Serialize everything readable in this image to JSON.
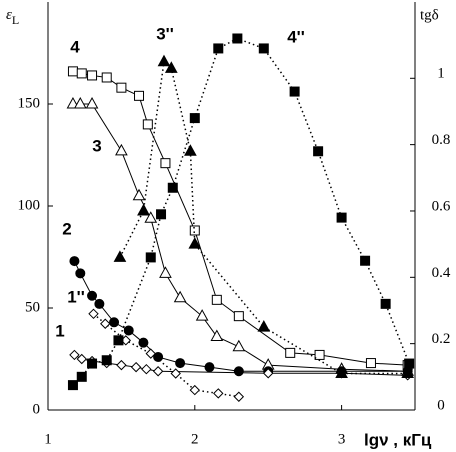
{
  "chart_data": {
    "type": "line",
    "y_label": {
      "symbol": "ε",
      "sub": "L"
    },
    "y2_label": "tgδ",
    "x_label": "lgν , кГц",
    "xlim": [
      1,
      3.5
    ],
    "xticks": [
      1,
      2,
      3
    ],
    "ylim": [
      0,
      200
    ],
    "yticks": [
      0,
      50,
      100,
      150
    ],
    "y2lim": [
      0,
      1.23
    ],
    "y2ticks": [
      0,
      0.2,
      0.4,
      0.6,
      0.8,
      1
    ],
    "series": [
      {
        "name": "4",
        "color": "#000000",
        "marker": "square-open",
        "line": "solid",
        "x": [
          1.17,
          1.23,
          1.3,
          1.4,
          1.5,
          1.62,
          1.68,
          1.8,
          2.0,
          2.15,
          2.3,
          2.65,
          2.85,
          3.2,
          3.45
        ],
        "values": [
          166,
          165,
          164,
          163,
          158,
          154,
          140,
          121,
          88,
          54,
          46,
          28,
          27,
          23,
          22
        ]
      },
      {
        "name": "3",
        "color": "#000000",
        "marker": "triangle-open",
        "line": "solid",
        "x": [
          1.17,
          1.22,
          1.3,
          1.5,
          1.62,
          1.7,
          1.8,
          1.9,
          2.05,
          2.15,
          2.3,
          2.5,
          3.0,
          3.45
        ],
        "values": [
          150,
          150,
          150,
          127,
          105,
          94,
          67,
          55,
          46,
          36,
          31,
          22,
          20,
          19
        ]
      },
      {
        "name": "2",
        "color": "#000000",
        "marker": "circle-filled",
        "line": "solid",
        "x": [
          1.18,
          1.22,
          1.3,
          1.35,
          1.45,
          1.55,
          1.65,
          1.75,
          1.9,
          2.1,
          2.3,
          2.5,
          3.0,
          3.45
        ],
        "values": [
          73,
          67,
          56,
          52,
          43,
          39,
          33,
          26,
          23,
          21,
          19,
          19,
          19,
          19
        ]
      },
      {
        "name": "1",
        "color": "#000000",
        "marker": "diamond-open",
        "line": "solid",
        "x": [
          1.18,
          1.23,
          1.3,
          1.4,
          1.5,
          1.6,
          1.67,
          1.75,
          2.5,
          3.0,
          3.45
        ],
        "values": [
          27,
          25,
          24,
          23,
          22,
          21,
          20,
          19,
          18,
          18,
          17
        ]
      },
      {
        "name": "1''",
        "color": "#000000",
        "marker": "diamond-open",
        "line": "dotted",
        "axis": "y2",
        "x": [
          1.31,
          1.39,
          1.53,
          1.7,
          1.87,
          2.0,
          2.16,
          2.3
        ],
        "values": [
          0.29,
          0.26,
          0.21,
          0.17,
          0.11,
          0.06,
          0.05,
          0.04
        ]
      },
      {
        "name": "3''",
        "color": "#000000",
        "marker": "triangle-filled",
        "line": "dotted",
        "axis": "y2",
        "x": [
          1.49,
          1.65,
          1.79,
          1.84,
          1.97,
          2.0,
          2.47,
          3.0,
          3.45
        ],
        "values": [
          0.46,
          0.6,
          1.05,
          1.03,
          0.78,
          0.5,
          0.25,
          0.11,
          0.11
        ]
      },
      {
        "name": "4''",
        "color": "#000000",
        "marker": "square-filled",
        "line": "dotted",
        "axis": "y2",
        "x": [
          1.17,
          1.23,
          1.3,
          1.4,
          1.48,
          1.7,
          1.77,
          1.85,
          2.0,
          2.16,
          2.29,
          2.47,
          2.68,
          2.84,
          3.0,
          3.16,
          3.3,
          3.46
        ],
        "values": [
          0.075,
          0.1,
          0.14,
          0.15,
          0.21,
          0.46,
          0.59,
          0.67,
          0.88,
          1.09,
          1.12,
          1.09,
          0.96,
          0.78,
          0.58,
          0.45,
          0.32,
          0.14
        ]
      }
    ]
  }
}
